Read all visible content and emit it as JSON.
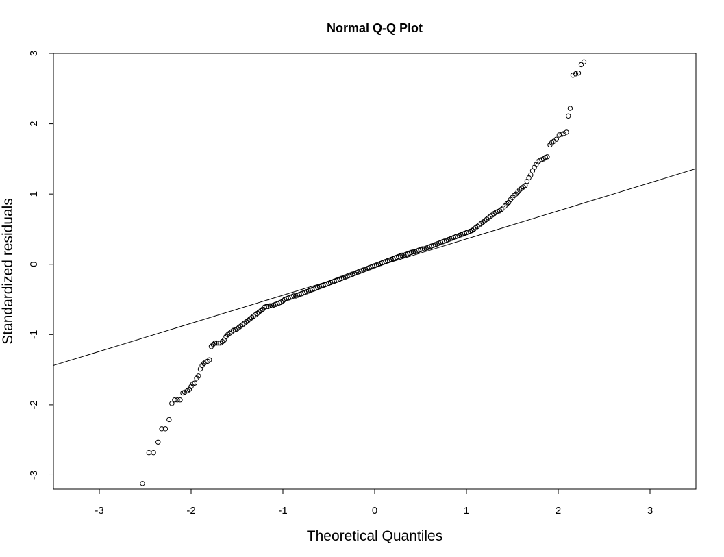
{
  "chart_data": {
    "type": "scatter",
    "title": "Normal Q-Q Plot",
    "xlabel": "Theoretical Quantiles",
    "ylabel": "Standardized residuals",
    "xlim": [
      -3.5,
      3.5
    ],
    "ylim": [
      -3.2,
      3.0
    ],
    "xticks": [
      -3,
      -2,
      -1,
      0,
      1,
      2,
      3
    ],
    "yticks": [
      -3,
      -2,
      -1,
      0,
      1,
      2,
      3
    ],
    "grid": false,
    "reference_line": {
      "slope": 0.4,
      "intercept": -0.04
    },
    "points": [
      [
        -2.53,
        -3.12
      ],
      [
        -2.46,
        -2.68
      ],
      [
        -2.41,
        -2.68
      ],
      [
        -2.36,
        -2.53
      ],
      [
        -2.32,
        -2.34
      ],
      [
        -2.28,
        -2.34
      ],
      [
        -2.24,
        -2.21
      ],
      [
        -2.21,
        -1.98
      ],
      [
        -2.18,
        -1.93
      ],
      [
        -2.15,
        -1.93
      ],
      [
        -2.12,
        -1.93
      ],
      [
        -2.09,
        -1.83
      ],
      [
        -2.07,
        -1.82
      ],
      [
        -2.04,
        -1.8
      ],
      [
        -2.02,
        -1.78
      ],
      [
        -2.0,
        -1.74
      ],
      [
        -1.98,
        -1.7
      ],
      [
        -1.96,
        -1.69
      ],
      [
        -1.94,
        -1.62
      ],
      [
        -1.92,
        -1.59
      ],
      [
        -1.9,
        -1.49
      ],
      [
        -1.88,
        -1.44
      ],
      [
        -1.86,
        -1.41
      ],
      [
        -1.84,
        -1.39
      ],
      [
        -1.82,
        -1.38
      ],
      [
        -1.8,
        -1.36
      ],
      [
        -1.78,
        -1.17
      ],
      [
        -1.76,
        -1.14
      ],
      [
        -1.74,
        -1.12
      ],
      [
        -1.72,
        -1.12
      ],
      [
        -1.7,
        -1.12
      ],
      [
        -1.68,
        -1.12
      ],
      [
        -1.66,
        -1.1
      ],
      [
        -1.64,
        -1.08
      ],
      [
        -1.62,
        -1.03
      ],
      [
        -1.6,
        -1.0
      ],
      [
        -1.58,
        -0.98
      ],
      [
        -1.56,
        -0.96
      ],
      [
        -1.54,
        -0.94
      ],
      [
        -1.52,
        -0.93
      ],
      [
        -1.5,
        -0.92
      ],
      [
        -1.48,
        -0.9
      ],
      [
        -1.46,
        -0.88
      ],
      [
        -1.44,
        -0.86
      ],
      [
        -1.42,
        -0.84
      ],
      [
        -1.4,
        -0.82
      ],
      [
        -1.38,
        -0.8
      ],
      [
        -1.36,
        -0.78
      ],
      [
        -1.34,
        -0.76
      ],
      [
        -1.32,
        -0.74
      ],
      [
        -1.3,
        -0.72
      ],
      [
        -1.28,
        -0.7
      ],
      [
        -1.26,
        -0.68
      ],
      [
        -1.24,
        -0.66
      ],
      [
        -1.22,
        -0.64
      ],
      [
        -1.2,
        -0.61
      ],
      [
        -1.18,
        -0.6
      ],
      [
        -1.16,
        -0.6
      ],
      [
        -1.14,
        -0.59
      ],
      [
        -1.12,
        -0.59
      ],
      [
        -1.1,
        -0.58
      ],
      [
        -1.08,
        -0.57
      ],
      [
        -1.06,
        -0.56
      ],
      [
        -1.04,
        -0.55
      ],
      [
        -1.02,
        -0.54
      ],
      [
        -1.0,
        -0.52
      ],
      [
        -0.98,
        -0.5
      ],
      [
        -0.96,
        -0.49
      ],
      [
        -0.94,
        -0.48
      ],
      [
        -0.92,
        -0.47
      ],
      [
        -0.9,
        -0.46
      ],
      [
        -0.88,
        -0.45
      ],
      [
        -0.86,
        -0.45
      ],
      [
        -0.84,
        -0.44
      ],
      [
        -0.82,
        -0.43
      ],
      [
        -0.8,
        -0.42
      ],
      [
        -0.78,
        -0.41
      ],
      [
        -0.76,
        -0.4
      ],
      [
        -0.74,
        -0.39
      ],
      [
        -0.72,
        -0.38
      ],
      [
        -0.7,
        -0.37
      ],
      [
        -0.68,
        -0.36
      ],
      [
        -0.66,
        -0.35
      ],
      [
        -0.64,
        -0.34
      ],
      [
        -0.62,
        -0.33
      ],
      [
        -0.6,
        -0.32
      ],
      [
        -0.58,
        -0.31
      ],
      [
        -0.56,
        -0.3
      ],
      [
        -0.54,
        -0.29
      ],
      [
        -0.52,
        -0.28
      ],
      [
        -0.5,
        -0.27
      ],
      [
        -0.48,
        -0.26
      ],
      [
        -0.46,
        -0.25
      ],
      [
        -0.44,
        -0.24
      ],
      [
        -0.42,
        -0.23
      ],
      [
        -0.4,
        -0.22
      ],
      [
        -0.38,
        -0.21
      ],
      [
        -0.36,
        -0.2
      ],
      [
        -0.34,
        -0.19
      ],
      [
        -0.32,
        -0.18
      ],
      [
        -0.3,
        -0.17
      ],
      [
        -0.28,
        -0.16
      ],
      [
        -0.26,
        -0.15
      ],
      [
        -0.24,
        -0.14
      ],
      [
        -0.22,
        -0.13
      ],
      [
        -0.2,
        -0.12
      ],
      [
        -0.18,
        -0.11
      ],
      [
        -0.16,
        -0.1
      ],
      [
        -0.14,
        -0.09
      ],
      [
        -0.12,
        -0.08
      ],
      [
        -0.1,
        -0.07
      ],
      [
        -0.08,
        -0.06
      ],
      [
        -0.06,
        -0.05
      ],
      [
        -0.04,
        -0.04
      ],
      [
        -0.02,
        -0.03
      ],
      [
        0.0,
        -0.02
      ],
      [
        0.02,
        -0.01
      ],
      [
        0.04,
        0.0
      ],
      [
        0.06,
        0.01
      ],
      [
        0.08,
        0.02
      ],
      [
        0.1,
        0.03
      ],
      [
        0.12,
        0.04
      ],
      [
        0.14,
        0.05
      ],
      [
        0.16,
        0.06
      ],
      [
        0.18,
        0.07
      ],
      [
        0.2,
        0.08
      ],
      [
        0.22,
        0.09
      ],
      [
        0.24,
        0.1
      ],
      [
        0.26,
        0.11
      ],
      [
        0.28,
        0.12
      ],
      [
        0.3,
        0.13
      ],
      [
        0.32,
        0.13
      ],
      [
        0.34,
        0.14
      ],
      [
        0.36,
        0.15
      ],
      [
        0.38,
        0.16
      ],
      [
        0.4,
        0.17
      ],
      [
        0.42,
        0.18
      ],
      [
        0.44,
        0.18
      ],
      [
        0.46,
        0.19
      ],
      [
        0.48,
        0.2
      ],
      [
        0.5,
        0.21
      ],
      [
        0.52,
        0.22
      ],
      [
        0.54,
        0.22
      ],
      [
        0.56,
        0.23
      ],
      [
        0.58,
        0.24
      ],
      [
        0.6,
        0.25
      ],
      [
        0.62,
        0.26
      ],
      [
        0.64,
        0.27
      ],
      [
        0.66,
        0.28
      ],
      [
        0.68,
        0.29
      ],
      [
        0.7,
        0.3
      ],
      [
        0.72,
        0.31
      ],
      [
        0.74,
        0.32
      ],
      [
        0.76,
        0.33
      ],
      [
        0.78,
        0.34
      ],
      [
        0.8,
        0.35
      ],
      [
        0.82,
        0.36
      ],
      [
        0.84,
        0.37
      ],
      [
        0.86,
        0.38
      ],
      [
        0.88,
        0.39
      ],
      [
        0.9,
        0.4
      ],
      [
        0.92,
        0.41
      ],
      [
        0.94,
        0.42
      ],
      [
        0.96,
        0.43
      ],
      [
        0.98,
        0.44
      ],
      [
        1.0,
        0.45
      ],
      [
        1.02,
        0.46
      ],
      [
        1.04,
        0.47
      ],
      [
        1.06,
        0.48
      ],
      [
        1.08,
        0.5
      ],
      [
        1.1,
        0.52
      ],
      [
        1.12,
        0.54
      ],
      [
        1.14,
        0.56
      ],
      [
        1.16,
        0.58
      ],
      [
        1.18,
        0.6
      ],
      [
        1.2,
        0.62
      ],
      [
        1.22,
        0.64
      ],
      [
        1.24,
        0.66
      ],
      [
        1.26,
        0.68
      ],
      [
        1.28,
        0.7
      ],
      [
        1.3,
        0.72
      ],
      [
        1.32,
        0.74
      ],
      [
        1.34,
        0.75
      ],
      [
        1.36,
        0.76
      ],
      [
        1.38,
        0.78
      ],
      [
        1.4,
        0.8
      ],
      [
        1.42,
        0.83
      ],
      [
        1.44,
        0.86
      ],
      [
        1.46,
        0.88
      ],
      [
        1.48,
        0.92
      ],
      [
        1.5,
        0.95
      ],
      [
        1.52,
        0.98
      ],
      [
        1.54,
        1.0
      ],
      [
        1.56,
        1.03
      ],
      [
        1.58,
        1.06
      ],
      [
        1.6,
        1.08
      ],
      [
        1.62,
        1.1
      ],
      [
        1.64,
        1.12
      ],
      [
        1.66,
        1.18
      ],
      [
        1.68,
        1.23
      ],
      [
        1.7,
        1.27
      ],
      [
        1.72,
        1.33
      ],
      [
        1.74,
        1.38
      ],
      [
        1.76,
        1.42
      ],
      [
        1.78,
        1.46
      ],
      [
        1.8,
        1.48
      ],
      [
        1.82,
        1.49
      ],
      [
        1.84,
        1.5
      ],
      [
        1.86,
        1.52
      ],
      [
        1.88,
        1.53
      ],
      [
        1.91,
        1.7
      ],
      [
        1.93,
        1.73
      ],
      [
        1.95,
        1.75
      ],
      [
        1.98,
        1.78
      ],
      [
        2.01,
        1.84
      ],
      [
        2.04,
        1.85
      ],
      [
        2.06,
        1.86
      ],
      [
        2.09,
        1.88
      ],
      [
        2.11,
        2.11
      ],
      [
        2.13,
        2.22
      ],
      [
        2.16,
        2.69
      ],
      [
        2.19,
        2.71
      ],
      [
        2.22,
        2.72
      ],
      [
        2.25,
        2.84
      ],
      [
        2.28,
        2.88
      ]
    ]
  }
}
